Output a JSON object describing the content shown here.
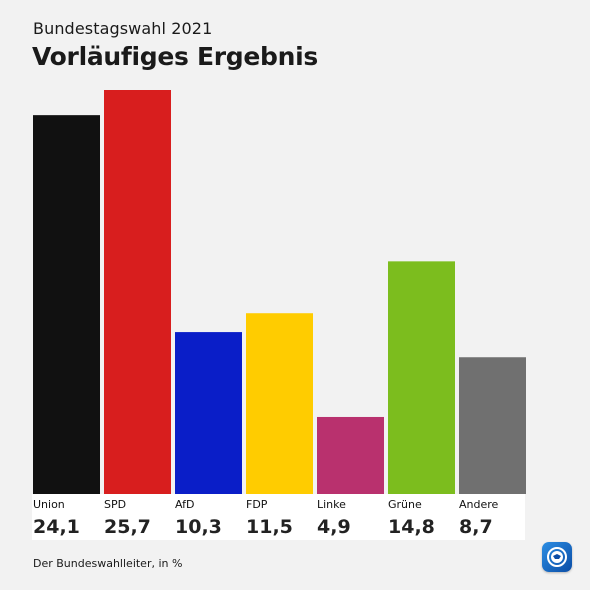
{
  "header": {
    "subtitle": "Bundestagswahl 2021",
    "title": "Vorläufiges Ergebnis"
  },
  "source": "Der Bundeswahlleiter, in %",
  "logo": {
    "icon": "tagesschau-logo-icon",
    "color": "#1a6fd0"
  },
  "chart_data": {
    "type": "bar",
    "title": "Vorläufiges Ergebnis",
    "subtitle": "Bundestagswahl 2021",
    "categories": [
      "Union",
      "SPD",
      "AfD",
      "FDP",
      "Linke",
      "Grüne",
      "Andere"
    ],
    "values": [
      24.1,
      25.7,
      10.3,
      11.5,
      4.9,
      14.8,
      8.7
    ],
    "value_labels": [
      "24,1",
      "25,7",
      "10,3",
      "11,5",
      "4,9",
      "14,8",
      "8,7"
    ],
    "colors": [
      "#111111",
      "#d81e1e",
      "#0a1ec8",
      "#ffcc00",
      "#b9316e",
      "#7cbd1e",
      "#707070"
    ],
    "ylim": [
      0,
      25.7
    ],
    "grid": false,
    "legend": "none"
  }
}
